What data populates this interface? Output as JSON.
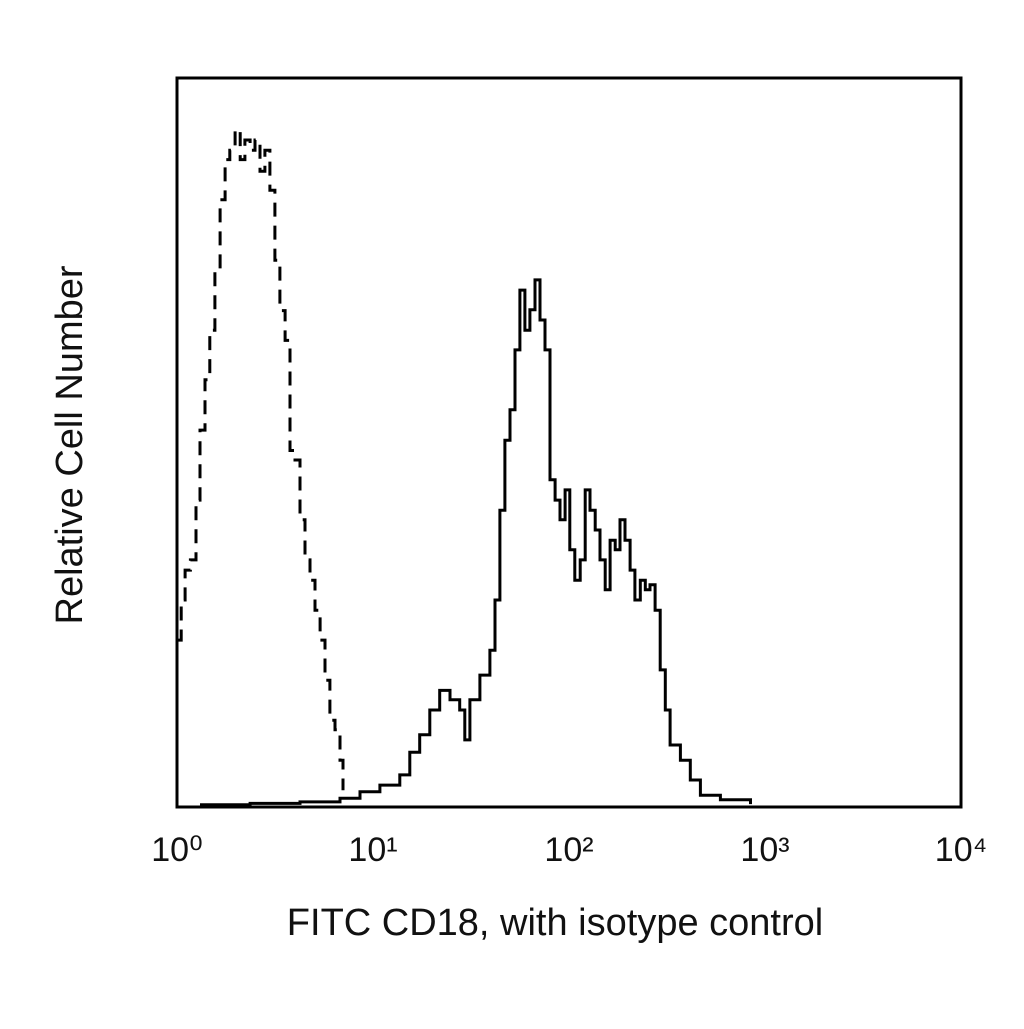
{
  "chart_data": {
    "type": "line",
    "x_label": "FITC CD18, with isotype control",
    "y_label": "Relative Cell Number",
    "xscale": "log",
    "xlim": [
      1,
      10000
    ],
    "ylim": [
      0,
      100
    ],
    "xticks": [
      {
        "value": 1,
        "label": "10⁰"
      },
      {
        "value": 10,
        "label": "10¹"
      },
      {
        "value": 100,
        "label": "10²"
      },
      {
        "value": 1000,
        "label": "10³"
      },
      {
        "value": 10000,
        "label": "10⁴"
      }
    ],
    "grid": false,
    "series": [
      {
        "color": "#000000",
        "dash": "solid",
        "x": [
          1.31,
          2.36,
          4.24,
          6.79,
          8.58,
          10.84,
          13.7,
          15.4,
          17.3,
          19.5,
          21.9,
          24.7,
          27.7,
          29.4,
          31.2,
          35.1,
          39.5,
          41.9,
          44.4,
          47.1,
          50.0,
          53.0,
          56.2,
          59.6,
          63.2,
          67.1,
          71.1,
          75.4,
          80.0,
          84.9,
          90.0,
          95.5,
          101,
          107,
          114,
          121,
          128,
          136,
          144,
          153,
          162,
          172,
          182,
          193,
          205,
          217,
          231,
          245,
          259,
          275,
          292,
          310,
          328,
          370,
          416,
          468,
          592,
          843
        ],
        "values": [
          0.3,
          0.5,
          0.7,
          1.2,
          2.1,
          3.0,
          4.4,
          7.5,
          9.9,
          13.3,
          16.0,
          14.7,
          13.3,
          9.2,
          14.7,
          18.1,
          21.5,
          28.4,
          40.7,
          50.3,
          54.5,
          62.7,
          70.9,
          65.4,
          68.2,
          72.3,
          66.8,
          62.7,
          44.9,
          42.1,
          39.4,
          43.5,
          35.3,
          31.1,
          33.9,
          43.5,
          40.7,
          38.0,
          33.9,
          29.8,
          36.6,
          35.3,
          39.4,
          36.6,
          32.5,
          28.4,
          31.1,
          29.8,
          30.5,
          27.0,
          18.8,
          13.3,
          8.5,
          6.4,
          3.7,
          1.6,
          1.0,
          0.4
        ]
      },
      {
        "color": "#000000",
        "dash": "dashed",
        "x": [
          1.01,
          1.05,
          1.1,
          1.17,
          1.25,
          1.31,
          1.39,
          1.47,
          1.56,
          1.66,
          1.76,
          1.86,
          1.98,
          2.1,
          2.22,
          2.36,
          2.5,
          2.65,
          2.81,
          2.98,
          3.16,
          3.35,
          3.56,
          3.77,
          4.0,
          4.24,
          4.5,
          4.77,
          5.06,
          5.37,
          5.69,
          6.03,
          6.4,
          6.79,
          7.03
        ],
        "values": [
          22.9,
          28.4,
          32.5,
          33.9,
          42.1,
          51.7,
          58.6,
          65.4,
          73.7,
          83.3,
          88.8,
          90.1,
          92.9,
          88.8,
          91.5,
          90.1,
          91.5,
          87.2,
          90.1,
          84.6,
          75.0,
          68.1,
          64.0,
          48.9,
          47.6,
          39.4,
          33.9,
          31.1,
          27.0,
          22.9,
          17.4,
          11.9,
          10.6,
          6.4,
          2.3
        ]
      }
    ]
  }
}
